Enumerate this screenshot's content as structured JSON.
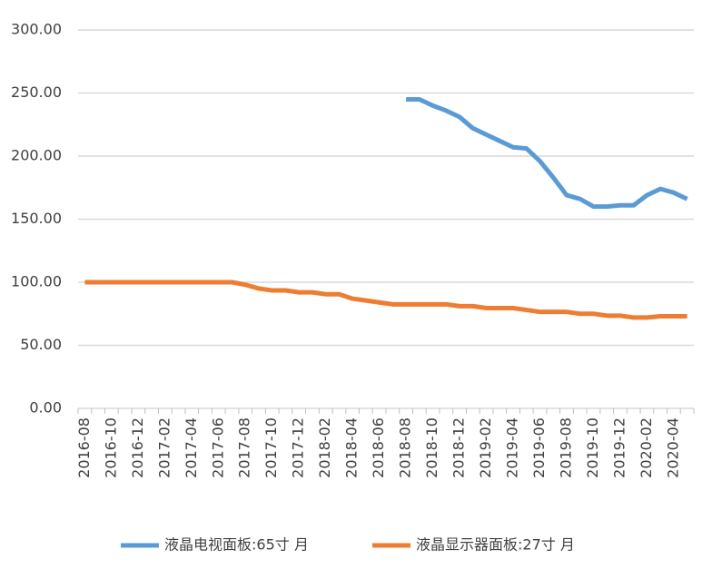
{
  "chart_data": {
    "type": "line",
    "categories": [
      "2016-08",
      null,
      "2016-10",
      null,
      "2016-12",
      null,
      "2017-02",
      null,
      "2017-04",
      null,
      "2017-06",
      null,
      "2017-08",
      null,
      "2017-10",
      null,
      "2017-12",
      null,
      "2018-02",
      null,
      "2018-04",
      null,
      "2018-06",
      null,
      "2018-08",
      null,
      "2018-10",
      null,
      "2018-12",
      null,
      "2019-02",
      null,
      "2019-04",
      null,
      "2019-06",
      null,
      "2019-08",
      null,
      "2019-10",
      null,
      "2019-12",
      null,
      "2020-02",
      null,
      "2020-04",
      null
    ],
    "series": [
      {
        "name": "液晶电视面板:65寸 月",
        "color": "#5b9bd5",
        "values": [
          null,
          null,
          null,
          null,
          null,
          null,
          null,
          null,
          null,
          null,
          null,
          null,
          null,
          null,
          null,
          null,
          null,
          null,
          null,
          null,
          null,
          null,
          null,
          null,
          245,
          245,
          240,
          236,
          231,
          222,
          217,
          212,
          207,
          206,
          196,
          183,
          169,
          166,
          160,
          160,
          161,
          161,
          169,
          174,
          171,
          166
        ]
      },
      {
        "name": "液晶显示器面板:27寸 月",
        "color": "#ed7d31",
        "values": [
          100,
          100,
          100,
          100,
          100,
          100,
          100,
          100,
          100,
          100,
          100,
          100,
          98,
          95,
          93.5,
          93.5,
          92,
          92,
          90.5,
          90.5,
          87,
          85.5,
          84,
          82.5,
          82.5,
          82.5,
          82.5,
          82.5,
          81,
          81,
          79.5,
          79.5,
          79.5,
          78,
          76.5,
          76.5,
          76.5,
          75,
          75,
          73.5,
          73.5,
          72,
          72,
          73,
          73,
          73
        ]
      }
    ],
    "ylim": [
      0,
      300
    ],
    "yticks": [
      {
        "value": 0,
        "label": "0.00"
      },
      {
        "value": 50,
        "label": "50.00"
      },
      {
        "value": 100,
        "label": "100.00"
      },
      {
        "value": 150,
        "label": "150.00"
      },
      {
        "value": 200,
        "label": "200.00"
      },
      {
        "value": 250,
        "label": "250.00"
      },
      {
        "value": 300,
        "label": "300.00"
      }
    ],
    "grid": true,
    "legend": "bottom"
  }
}
